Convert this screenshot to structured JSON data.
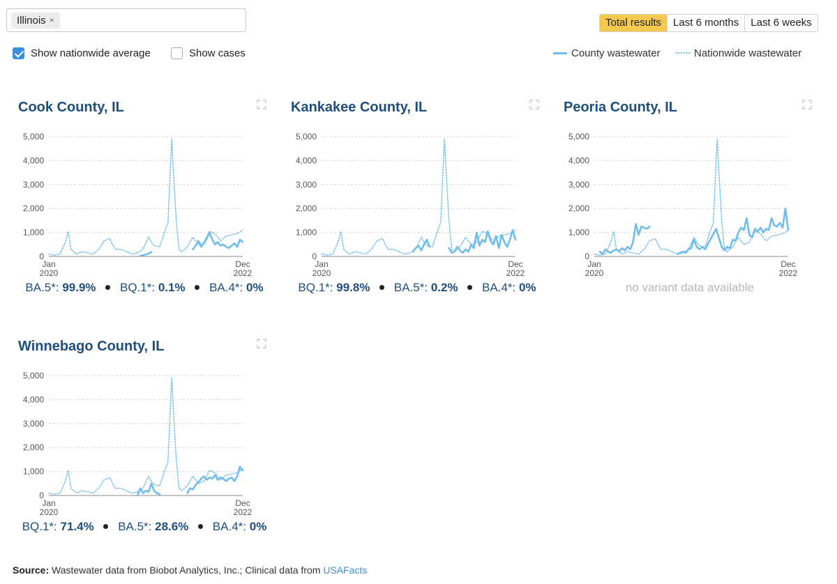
{
  "filter": {
    "chip_label": "Illinois",
    "remove_symbol": "×"
  },
  "options": {
    "nationwide": "Show nationwide average",
    "cases": "Show cases",
    "nationwide_checked": true,
    "cases_checked": false
  },
  "tabs": [
    {
      "label": "Total results",
      "active": true
    },
    {
      "label": "Last 6 months",
      "active": false
    },
    {
      "label": "Last 6 weeks",
      "active": false
    }
  ],
  "legend": {
    "county": "County wastewater",
    "nationwide": "Nationwide wastewater"
  },
  "colors": {
    "line": "#6fbdee",
    "title": "#1e4e7d",
    "active_tab": "#f5c84e"
  },
  "panels": [
    {
      "title": "Cook County, IL",
      "variants": [
        {
          "name": "BA.5*:",
          "value": "99.9%"
        },
        {
          "name": "BQ.1*:",
          "value": "0.1%"
        },
        {
          "name": "BA.4*:",
          "value": "0%"
        }
      ]
    },
    {
      "title": "Kankakee County, IL",
      "variants": [
        {
          "name": "BQ.1*:",
          "value": "99.8%"
        },
        {
          "name": "BA.5*:",
          "value": "0.2%"
        },
        {
          "name": "BA.4*:",
          "value": "0%"
        }
      ]
    },
    {
      "title": "Peoria County, IL",
      "no_variant": "no variant data available"
    },
    {
      "title": "Winnebago County, IL",
      "variants": [
        {
          "name": "BQ.1*:",
          "value": "71.4%"
        },
        {
          "name": "BA.5*:",
          "value": "28.6%"
        },
        {
          "name": "BA.4*:",
          "value": "0%"
        }
      ]
    }
  ],
  "source": {
    "label": "Source:",
    "text": "Wastewater data from Biobot Analytics, Inc.; Clinical data from",
    "link": "USAFacts"
  },
  "chart_data": [
    {
      "type": "line",
      "title": "Cook County, IL",
      "x_start": "Jan 2020",
      "x_end": "Dec 2022",
      "xlim": [
        0,
        35
      ],
      "ylim": [
        0,
        5000
      ],
      "yticks": [
        0,
        1000,
        2000,
        3000,
        4000,
        5000
      ],
      "ytick_labels": [
        "0",
        "1,000",
        "2,000",
        "3,000",
        "4,000",
        "5,000"
      ],
      "xtick_labels": [
        [
          "Jan",
          "2020"
        ],
        [
          "Dec",
          "2022"
        ]
      ],
      "series": [
        {
          "name": "County wastewater",
          "style": "solid",
          "x": [
            16.5,
            17,
            17.5,
            18,
            18.5,
            26,
            26.5,
            27,
            27.5,
            28,
            28.5,
            29,
            29.5,
            30,
            30.5,
            31,
            31.5,
            32,
            32.5,
            33,
            33.5,
            34,
            34.5,
            35
          ],
          "y": [
            30,
            50,
            80,
            120,
            180,
            300,
            450,
            650,
            400,
            550,
            750,
            1000,
            700,
            500,
            600,
            450,
            500,
            400,
            350,
            450,
            550,
            400,
            700,
            600
          ]
        },
        {
          "name": "Nationwide wastewater",
          "style": "dotted",
          "x": [
            0,
            1,
            2,
            3,
            3.5,
            4,
            5,
            6,
            7,
            8,
            9,
            10,
            10.5,
            11,
            11.5,
            12,
            13,
            14,
            15,
            16,
            17,
            18,
            18.5,
            19,
            20,
            21,
            21.5,
            22,
            22.2,
            22.5,
            23,
            23.5,
            24,
            25,
            26,
            27,
            28,
            29,
            30,
            31,
            32,
            33,
            34,
            35
          ],
          "y": [
            100,
            50,
            100,
            600,
            1050,
            300,
            100,
            200,
            150,
            100,
            300,
            650,
            700,
            750,
            500,
            300,
            300,
            200,
            100,
            150,
            300,
            800,
            600,
            450,
            400,
            1100,
            1400,
            4000,
            4900,
            3500,
            1500,
            300,
            200,
            400,
            800,
            500,
            600,
            1050,
            950,
            650,
            850,
            900,
            950,
            1100
          ]
        }
      ],
      "variants": [
        {
          "name": "BA.5*",
          "percent": 99.9
        },
        {
          "name": "BQ.1*",
          "percent": 0.1
        },
        {
          "name": "BA.4*",
          "percent": 0
        }
      ]
    },
    {
      "type": "line",
      "title": "Kankakee County, IL",
      "x_start": "Jan 2020",
      "x_end": "Dec 2022",
      "xlim": [
        0,
        35
      ],
      "ylim": [
        0,
        5000
      ],
      "yticks": [
        0,
        1000,
        2000,
        3000,
        4000,
        5000
      ],
      "ytick_labels": [
        "0",
        "1,000",
        "2,000",
        "3,000",
        "4,000",
        "5,000"
      ],
      "xtick_labels": [
        [
          "Jan",
          "2020"
        ],
        [
          "Dec",
          "2022"
        ]
      ],
      "series": [
        {
          "name": "County wastewater",
          "style": "solid",
          "x": [
            16.5,
            17,
            17.5,
            18,
            18.5,
            19,
            19.5,
            23,
            23.5,
            24,
            24.5,
            25,
            25.5,
            26,
            26.5,
            27,
            27.5,
            28,
            28.5,
            29,
            29.5,
            30,
            30.5,
            31,
            31.5,
            32,
            32.5,
            33,
            33.5,
            34,
            34.5,
            35
          ],
          "y": [
            200,
            350,
            450,
            250,
            500,
            700,
            400,
            350,
            150,
            200,
            400,
            250,
            150,
            300,
            200,
            500,
            350,
            1000,
            450,
            700,
            600,
            1050,
            650,
            500,
            850,
            350,
            900,
            600,
            400,
            700,
            1100,
            700
          ]
        },
        {
          "name": "Nationwide wastewater",
          "style": "dotted",
          "x": [
            0,
            1,
            2,
            3,
            3.5,
            4,
            5,
            6,
            7,
            8,
            9,
            10,
            10.5,
            11,
            11.5,
            12,
            13,
            14,
            15,
            16,
            17,
            18,
            18.5,
            19,
            20,
            21,
            21.5,
            22,
            22.2,
            22.5,
            23,
            23.5,
            24,
            25,
            26,
            27,
            28,
            29,
            30,
            31,
            32,
            33,
            34,
            35
          ],
          "y": [
            100,
            50,
            100,
            600,
            1050,
            300,
            100,
            200,
            150,
            100,
            300,
            650,
            700,
            750,
            500,
            300,
            300,
            200,
            100,
            150,
            300,
            800,
            600,
            450,
            400,
            1100,
            1400,
            4000,
            4900,
            3500,
            1500,
            300,
            200,
            400,
            800,
            500,
            600,
            1050,
            950,
            650,
            850,
            900,
            950,
            1100
          ]
        }
      ],
      "variants": [
        {
          "name": "BQ.1*",
          "percent": 99.8
        },
        {
          "name": "BA.5*",
          "percent": 0.2
        },
        {
          "name": "BA.4*",
          "percent": 0
        }
      ]
    },
    {
      "type": "line",
      "title": "Peoria County, IL",
      "x_start": "Jan 2020",
      "x_end": "Dec 2022",
      "xlim": [
        0,
        35
      ],
      "ylim": [
        0,
        5000
      ],
      "yticks": [
        0,
        1000,
        2000,
        3000,
        4000,
        5000
      ],
      "ytick_labels": [
        "0",
        "1,000",
        "2,000",
        "3,000",
        "4,000",
        "5,000"
      ],
      "xtick_labels": [
        [
          "Jan",
          "2020"
        ],
        [
          "Dec",
          "2022"
        ]
      ],
      "series": [
        {
          "name": "County wastewater",
          "style": "solid",
          "x": [
            1,
            1.5,
            2,
            2.5,
            3,
            3.5,
            4,
            4.5,
            5,
            5.5,
            6,
            6.5,
            7,
            7.5,
            8,
            8.5,
            9,
            9.5,
            10,
            15,
            15.5,
            16,
            16.5,
            17,
            17.5,
            18,
            18.5,
            19,
            19.5,
            20,
            22,
            23,
            23.5,
            24,
            24.5,
            25,
            25.5,
            26,
            26.5,
            27,
            27.5,
            28,
            28.5,
            29,
            29.5,
            30,
            30.5,
            31,
            31.5,
            32,
            32.5,
            33,
            33.5,
            34,
            34.5,
            35
          ],
          "y": [
            200,
            100,
            300,
            200,
            150,
            250,
            300,
            200,
            350,
            250,
            400,
            300,
            600,
            1350,
            900,
            1250,
            1200,
            1150,
            1250,
            100,
            150,
            200,
            150,
            300,
            350,
            700,
            400,
            300,
            400,
            300,
            1150,
            400,
            250,
            400,
            350,
            700,
            650,
            1000,
            1200,
            1100,
            1600,
            900,
            800,
            1150,
            1050,
            1200,
            1000,
            1150,
            1100,
            1600,
            1300,
            1250,
            1400,
            1200,
            2000,
            1100
          ]
        },
        {
          "name": "Nationwide wastewater",
          "style": "dotted",
          "x": [
            0,
            1,
            2,
            3,
            3.5,
            4,
            5,
            6,
            7,
            8,
            9,
            10,
            10.5,
            11,
            11.5,
            12,
            13,
            14,
            15,
            16,
            17,
            18,
            18.5,
            19,
            20,
            21,
            21.5,
            22,
            22.2,
            22.5,
            23,
            23.5,
            24,
            25,
            26,
            27,
            28,
            29,
            30,
            31,
            32,
            33,
            34,
            35
          ],
          "y": [
            100,
            50,
            100,
            600,
            1050,
            300,
            100,
            200,
            150,
            100,
            300,
            650,
            700,
            750,
            500,
            300,
            300,
            200,
            100,
            150,
            300,
            800,
            600,
            450,
            400,
            1100,
            1400,
            4000,
            4900,
            3500,
            1500,
            300,
            200,
            400,
            800,
            500,
            600,
            1050,
            950,
            650,
            850,
            900,
            950,
            1100
          ]
        }
      ],
      "variants": []
    },
    {
      "type": "line",
      "title": "Winnebago County, IL",
      "x_start": "Jan 2020",
      "x_end": "Dec 2022",
      "xlim": [
        0,
        35
      ],
      "ylim": [
        0,
        5000
      ],
      "yticks": [
        0,
        1000,
        2000,
        3000,
        4000,
        5000
      ],
      "ytick_labels": [
        "0",
        "1,000",
        "2,000",
        "3,000",
        "4,000",
        "5,000"
      ],
      "xtick_labels": [
        [
          "Jan",
          "2020"
        ],
        [
          "Dec",
          "2022"
        ]
      ],
      "series": [
        {
          "name": "County wastewater",
          "style": "solid",
          "x": [
            16,
            16.5,
            17,
            17.5,
            18,
            18.5,
            19,
            19.5,
            20,
            25,
            25.5,
            26,
            26.5,
            27,
            27.5,
            28,
            28.5,
            29,
            29.5,
            30,
            30.5,
            31,
            31.5,
            32,
            32.5,
            33,
            33.5,
            34,
            34.5,
            35
          ],
          "y": [
            0,
            300,
            100,
            200,
            150,
            500,
            200,
            100,
            50,
            100,
            300,
            250,
            450,
            550,
            700,
            800,
            650,
            750,
            700,
            850,
            650,
            750,
            700,
            600,
            700,
            750,
            600,
            800,
            1200,
            1050
          ]
        },
        {
          "name": "Nationwide wastewater",
          "style": "dotted",
          "x": [
            0,
            1,
            2,
            3,
            3.5,
            4,
            5,
            6,
            7,
            8,
            9,
            10,
            10.5,
            11,
            11.5,
            12,
            13,
            14,
            15,
            16,
            17,
            18,
            18.5,
            19,
            20,
            21,
            21.5,
            22,
            22.2,
            22.5,
            23,
            23.5,
            24,
            25,
            26,
            27,
            28,
            29,
            30,
            31,
            32,
            33,
            34,
            35
          ],
          "y": [
            100,
            50,
            100,
            600,
            1050,
            300,
            100,
            200,
            150,
            100,
            300,
            650,
            700,
            750,
            500,
            300,
            300,
            200,
            100,
            150,
            300,
            800,
            600,
            450,
            400,
            1100,
            1400,
            4000,
            4900,
            3500,
            1500,
            300,
            200,
            400,
            800,
            500,
            600,
            1050,
            950,
            650,
            850,
            900,
            950,
            1100
          ]
        }
      ],
      "variants": [
        {
          "name": "BQ.1*",
          "percent": 71.4
        },
        {
          "name": "BA.5*",
          "percent": 28.6
        },
        {
          "name": "BA.4*",
          "percent": 0
        }
      ]
    }
  ]
}
